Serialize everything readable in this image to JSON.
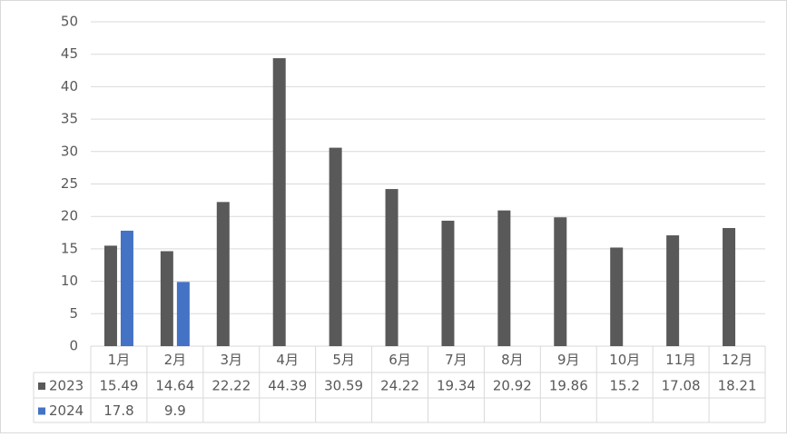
{
  "chart_data": {
    "type": "bar",
    "categories": [
      "1月",
      "2月",
      "3月",
      "4月",
      "5月",
      "6月",
      "7月",
      "8月",
      "9月",
      "10月",
      "11月",
      "12月"
    ],
    "series": [
      {
        "name": "2023",
        "color": "#595959",
        "values": [
          15.49,
          14.64,
          22.22,
          44.39,
          30.59,
          24.22,
          19.34,
          20.92,
          19.86,
          15.2,
          17.08,
          18.21
        ]
      },
      {
        "name": "2024",
        "color": "#4472c4",
        "values": [
          17.8,
          9.9,
          null,
          null,
          null,
          null,
          null,
          null,
          null,
          null,
          null,
          null
        ]
      }
    ],
    "ylim": [
      0,
      50
    ],
    "yticks": [
      0,
      5,
      10,
      15,
      20,
      25,
      30,
      35,
      40,
      45,
      50
    ],
    "grid": true
  }
}
